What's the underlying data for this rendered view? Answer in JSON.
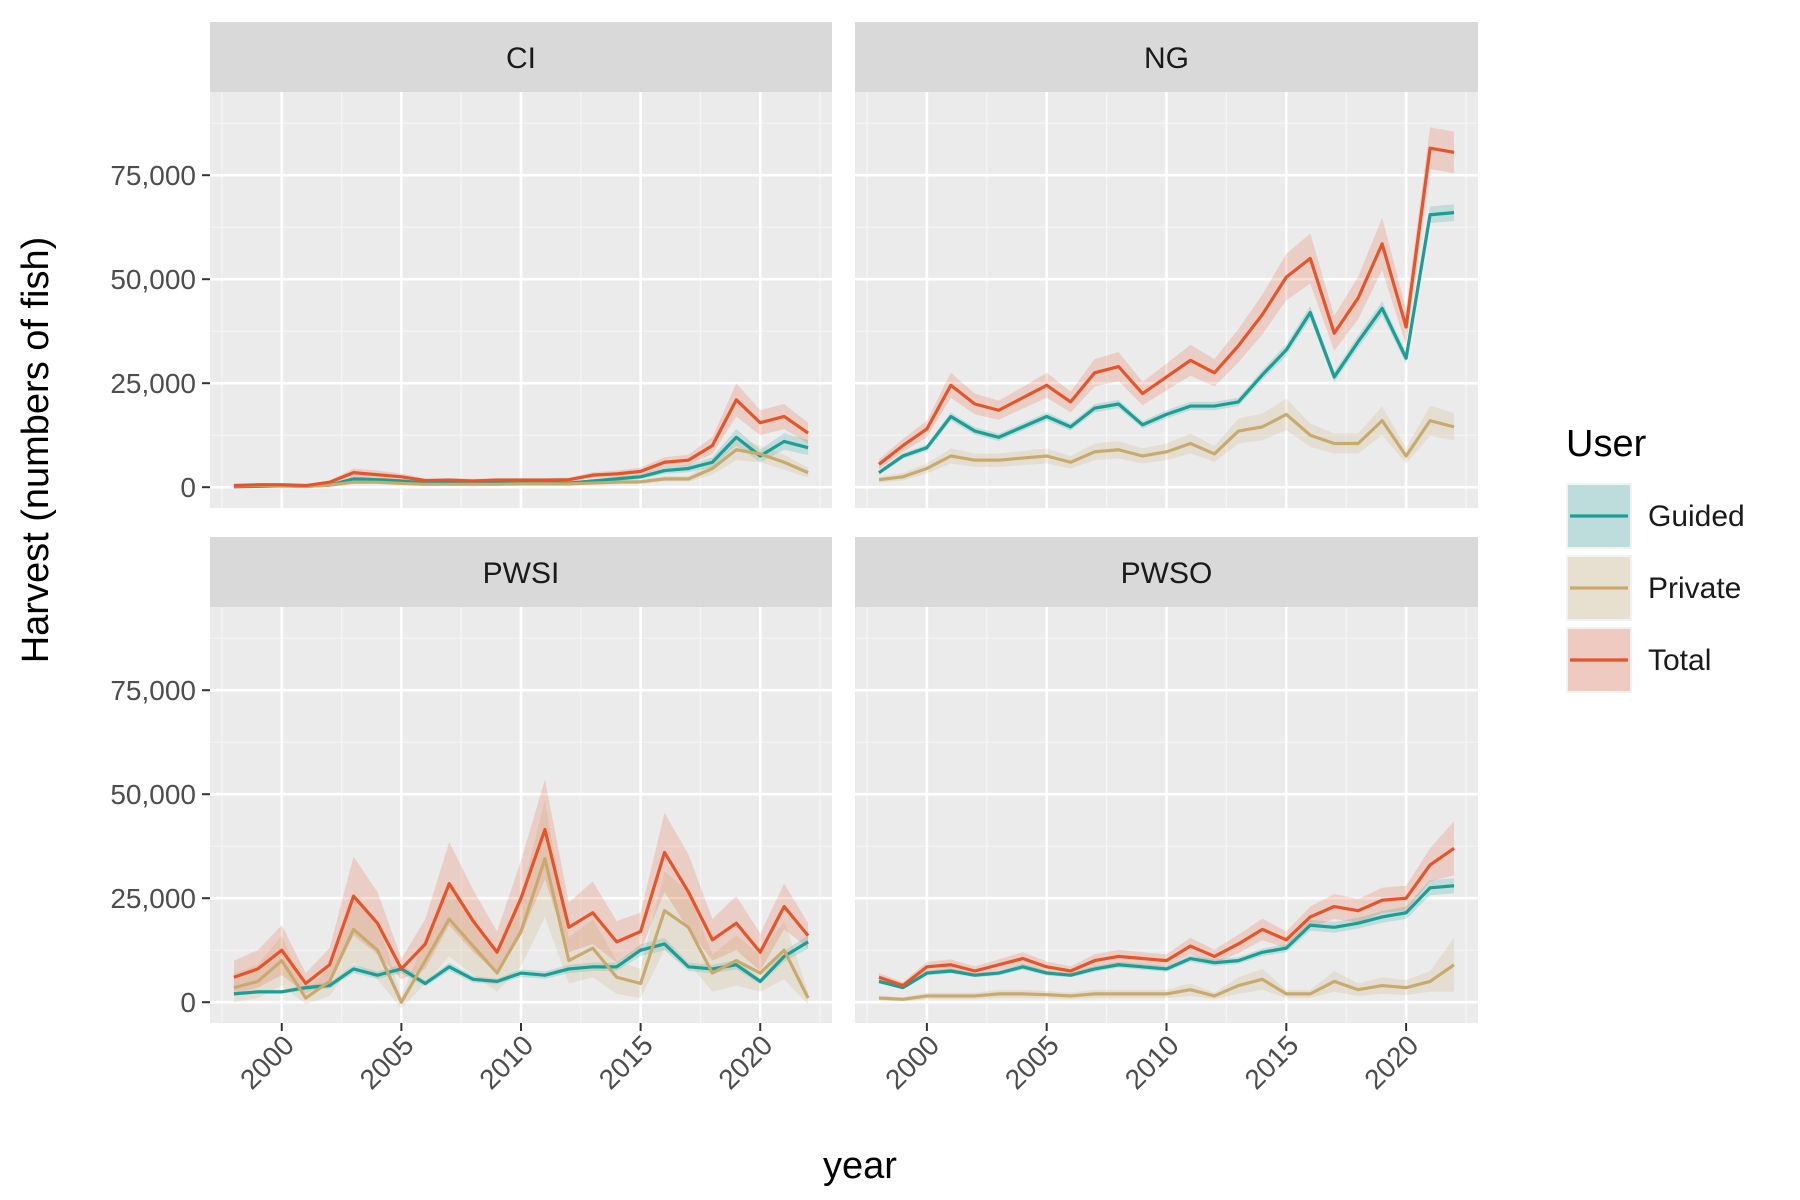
{
  "chart_data": {
    "type": "line",
    "facet_layout": "2x2 grid",
    "xlabel": "year",
    "ylabel": "Harvest (numbers of fish)",
    "xlim": [
      1997,
      2023
    ],
    "ylim": [
      -5000,
      95000
    ],
    "x_ticks": [
      2000,
      2005,
      2010,
      2015,
      2020
    ],
    "y_ticks": [
      0,
      25000,
      50000,
      75000
    ],
    "y_tick_labels": [
      "0",
      "25,000",
      "50,000",
      "75,000"
    ],
    "grid": true,
    "legend": {
      "title": "User",
      "placement": "right",
      "entries": [
        "Guided",
        "Private",
        "Total"
      ]
    },
    "colors": {
      "Guided": "#1a9e96",
      "Private": "#c8aa6e",
      "Total": "#e8542a"
    },
    "x": [
      1998,
      1999,
      2000,
      2001,
      2002,
      2003,
      2004,
      2005,
      2006,
      2007,
      2008,
      2009,
      2010,
      2011,
      2012,
      2013,
      2014,
      2015,
      2016,
      2017,
      2018,
      2019,
      2020,
      2021,
      2022
    ],
    "panels": [
      {
        "title": "CI",
        "series": [
          {
            "name": "Guided",
            "values": [
              100,
              200,
              300,
              200,
              500,
              2000,
              1800,
              1500,
              1000,
              1000,
              900,
              1000,
              1000,
              1000,
              1000,
              1500,
              2000,
              2500,
              4000,
              4500,
              6000,
              12000,
              7500,
              11000,
              9500
            ],
            "band_width": [
              100,
              100,
              150,
              100,
              200,
              500,
              500,
              400,
              300,
              300,
              300,
              300,
              300,
              300,
              300,
              400,
              500,
              600,
              800,
              900,
              1200,
              2000,
              1500,
              2000,
              1800
            ]
          },
          {
            "name": "Private",
            "values": [
              300,
              400,
              300,
              200,
              500,
              1200,
              1200,
              900,
              700,
              700,
              700,
              700,
              800,
              800,
              800,
              1000,
              1200,
              1300,
              2000,
              2000,
              4500,
              9000,
              8000,
              6000,
              3500
            ],
            "band_width": [
              100,
              100,
              100,
              100,
              200,
              500,
              500,
              400,
              300,
              300,
              300,
              300,
              300,
              300,
              300,
              400,
              500,
              500,
              700,
              700,
              1500,
              2500,
              2000,
              1800,
              1200
            ]
          },
          {
            "name": "Total",
            "values": [
              400,
              600,
              600,
              400,
              1200,
              3500,
              3000,
              2500,
              1600,
              1700,
              1500,
              1700,
              1700,
              1700,
              1800,
              2900,
              3200,
              3800,
              6000,
              6500,
              10000,
              21000,
              15500,
              17000,
              13000
            ],
            "band_width": [
              200,
              200,
              200,
              200,
              400,
              1000,
              1000,
              800,
              500,
              500,
              500,
              500,
              500,
              500,
              500,
              700,
              800,
              900,
              1200,
              1300,
              2000,
              4000,
              3000,
              3000,
              2500
            ]
          }
        ]
      },
      {
        "title": "NG",
        "series": [
          {
            "name": "Guided",
            "values": [
              3500,
              7500,
              9500,
              17000,
              13500,
              12000,
              14500,
              17000,
              14500,
              19000,
              20000,
              15000,
              17500,
              19500,
              19500,
              20500,
              27000,
              33000,
              42000,
              26500,
              35000,
              43000,
              31000,
              65500,
              66000
            ],
            "band_width": [
              500,
              700,
              800,
              1000,
              900,
              900,
              900,
              1000,
              900,
              1000,
              1000,
              900,
              1000,
              1000,
              1000,
              1000,
              1200,
              1400,
              1600,
              1300,
              1500,
              1700,
              1400,
              2000,
              2000
            ]
          },
          {
            "name": "Private",
            "values": [
              1800,
              2500,
              4500,
              7500,
              6500,
              6500,
              7000,
              7500,
              6000,
              8500,
              9000,
              7500,
              8500,
              10500,
              8000,
              13500,
              14500,
              17500,
              12500,
              10500,
              10500,
              16000,
              7500,
              16000,
              14500
            ],
            "band_width": [
              700,
              900,
              1200,
              1800,
              1600,
              1600,
              1700,
              1800,
              1500,
              2000,
              2100,
              1800,
              2000,
              2400,
              1900,
              3000,
              3200,
              3800,
              2800,
              2400,
              2400,
              3500,
              1800,
              3600,
              3300
            ]
          },
          {
            "name": "Total",
            "values": [
              5500,
              10000,
              14000,
              24500,
              20000,
              18500,
              21500,
              24500,
              20500,
              27500,
              29000,
              22500,
              26500,
              30500,
              27500,
              34000,
              41500,
              50500,
              55000,
              37000,
              45500,
              58500,
              38500,
              81500,
              80500
            ],
            "band_width": [
              1200,
              1600,
              2000,
              3000,
              2500,
              2300,
              2600,
              3000,
              2500,
              3300,
              3500,
              2800,
              3200,
              3700,
              3300,
              4000,
              4800,
              5600,
              6000,
              4200,
              5100,
              6300,
              4300,
              5000,
              5000
            ]
          }
        ]
      },
      {
        "title": "PWSI",
        "series": [
          {
            "name": "Guided",
            "values": [
              2000,
              2500,
              2500,
              3500,
              4000,
              8000,
              6500,
              8000,
              4500,
              8500,
              5500,
              5000,
              7000,
              6500,
              8000,
              8500,
              8500,
              12500,
              14000,
              8500,
              8000,
              9000,
              5000,
              11000,
              14500
            ],
            "band_width": [
              400,
              500,
              500,
              600,
              700,
              1000,
              900,
              1000,
              700,
              1000,
              800,
              700,
              900,
              900,
              1000,
              1000,
              1000,
              1400,
              1500,
              1000,
              1000,
              1100,
              700,
              1300,
              1600
            ]
          },
          {
            "name": "Private",
            "values": [
              3500,
              5000,
              10000,
              1000,
              5000,
              17500,
              12500,
              0,
              10000,
              20000,
              13500,
              7000,
              17000,
              34500,
              10000,
              13000,
              6000,
              4500,
              22000,
              18000,
              7000,
              10000,
              7000,
              12500,
              1000
            ],
            "band_width": [
              3500,
              4000,
              6000,
              1500,
              3500,
              8000,
              7000,
              1500,
              5500,
              9000,
              7000,
              4500,
              8500,
              14000,
              5500,
              7000,
              4000,
              3500,
              9500,
              8500,
              4500,
              6000,
              4500,
              7000,
              1500
            ]
          },
          {
            "name": "Total",
            "values": [
              6000,
              8000,
              12500,
              4500,
              9000,
              25500,
              19000,
              8000,
              14000,
              28500,
              19500,
              12000,
              25000,
              41500,
              18000,
              21500,
              14500,
              17000,
              36000,
              26500,
              15000,
              19000,
              12000,
              23000,
              16000
            ],
            "band_width": [
              4000,
              4500,
              6000,
              2500,
              4000,
              9500,
              7500,
              2500,
              6000,
              10000,
              7500,
              5000,
              9000,
              12000,
              6000,
              7500,
              5000,
              4500,
              9500,
              9000,
              5000,
              6500,
              4500,
              5500,
              3000
            ]
          }
        ]
      },
      {
        "title": "PWSO",
        "series": [
          {
            "name": "Guided",
            "values": [
              5000,
              3500,
              7000,
              7500,
              6500,
              7000,
              8500,
              7000,
              6500,
              8000,
              9000,
              8500,
              8000,
              10500,
              9500,
              10000,
              12000,
              13000,
              18500,
              18000,
              19000,
              20500,
              21500,
              27500,
              28000
            ],
            "band_width": [
              500,
              400,
              600,
              600,
              500,
              600,
              700,
              600,
              500,
              700,
              700,
              700,
              700,
              800,
              800,
              800,
              900,
              1000,
              1300,
              1300,
              1300,
              1400,
              1500,
              1800,
              1800
            ]
          },
          {
            "name": "Private",
            "values": [
              1000,
              700,
              1500,
              1500,
              1500,
              2000,
              2000,
              1800,
              1500,
              2000,
              2000,
              2000,
              2000,
              3000,
              1500,
              4000,
              5500,
              2000,
              2000,
              5000,
              3000,
              4000,
              3500,
              5000,
              9000
            ],
            "band_width": [
              600,
              500,
              800,
              800,
              800,
              1000,
              1000,
              900,
              800,
              1000,
              1000,
              1000,
              1000,
              1500,
              800,
              2000,
              2500,
              1000,
              1000,
              2500,
              1500,
              2000,
              1800,
              2500,
              6500
            ]
          },
          {
            "name": "Total",
            "values": [
              6000,
              4000,
              8500,
              9000,
              7500,
              9000,
              10500,
              8500,
              7500,
              10000,
              11000,
              10500,
              10000,
              13500,
              11000,
              14000,
              17500,
              15000,
              20500,
              23000,
              22000,
              24500,
              25000,
              33000,
              37000
            ],
            "band_width": [
              1000,
              800,
              1200,
              1300,
              1100,
              1300,
              1500,
              1300,
              1100,
              1500,
              1600,
              1500,
              1500,
              2000,
              1600,
              2200,
              2600,
              2000,
              2500,
              3000,
              2800,
              3000,
              3000,
              4000,
              6500
            ]
          }
        ]
      }
    ]
  }
}
